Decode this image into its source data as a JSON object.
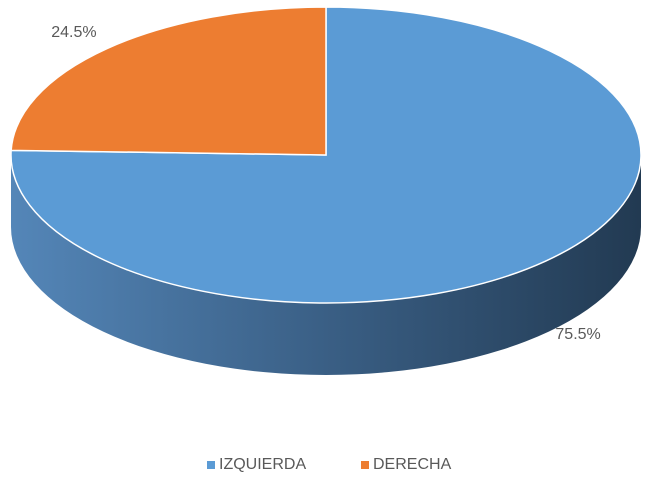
{
  "chart_data": {
    "type": "pie",
    "categories": [
      "IZQUIERDA",
      "DERECHA"
    ],
    "values": [
      75.5,
      24.5
    ],
    "value_labels": [
      "75.5%",
      "24.5%"
    ],
    "colors": [
      "#5b9bd5",
      "#ed7d31"
    ],
    "legend": "bottom"
  }
}
